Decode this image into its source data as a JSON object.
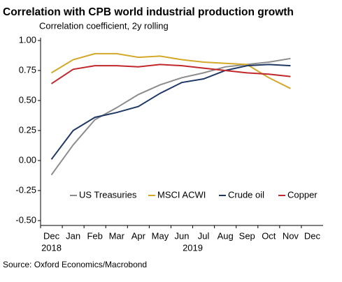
{
  "chart_data": {
    "type": "line",
    "title": "Correlation with CPB world industrial production growth",
    "subtitle": "Correlation coefficient, 2y rolling",
    "source": "Source: Oxford Economics/Macrobond",
    "categories": [
      "Dec",
      "Jan",
      "Feb",
      "Mar",
      "Apr",
      "May",
      "Jun",
      "Jul",
      "Aug",
      "Sep",
      "Oct",
      "Nov",
      "Dec"
    ],
    "years": [
      "2018",
      "2019"
    ],
    "series": [
      {
        "name": "US Treasuries",
        "color": "#8c8c8c",
        "values": [
          -0.12,
          0.13,
          0.34,
          0.44,
          0.55,
          0.63,
          0.69,
          0.73,
          0.78,
          0.8,
          0.82,
          0.85,
          null
        ]
      },
      {
        "name": "MSCI ACWI",
        "color": "#d4a82a",
        "values": [
          0.73,
          0.84,
          0.89,
          0.89,
          0.86,
          0.87,
          0.84,
          0.82,
          0.81,
          0.8,
          0.69,
          0.6,
          null
        ]
      },
      {
        "name": "Crude oil",
        "color": "#1f3864",
        "values": [
          0.01,
          0.25,
          0.36,
          0.4,
          0.45,
          0.56,
          0.65,
          0.68,
          0.75,
          0.79,
          0.8,
          0.79,
          null
        ]
      },
      {
        "name": "Copper",
        "color": "#c0282c",
        "values": [
          0.64,
          0.76,
          0.79,
          0.79,
          0.78,
          0.8,
          0.79,
          0.77,
          0.75,
          0.73,
          0.72,
          0.7,
          null
        ]
      }
    ],
    "ylim": [
      -0.5,
      1.0
    ],
    "yticks": [
      {
        "value": -0.5,
        "label": "-0.50"
      },
      {
        "value": -0.25,
        "label": "-0.25"
      },
      {
        "value": 0,
        "label": "0.00"
      },
      {
        "value": 0.25,
        "label": "0.25"
      },
      {
        "value": 0.5,
        "label": "0.50"
      },
      {
        "value": 0.75,
        "label": "0.75"
      },
      {
        "value": 1.0,
        "label": "1.00"
      }
    ],
    "grid": false,
    "legend": "bottom"
  }
}
